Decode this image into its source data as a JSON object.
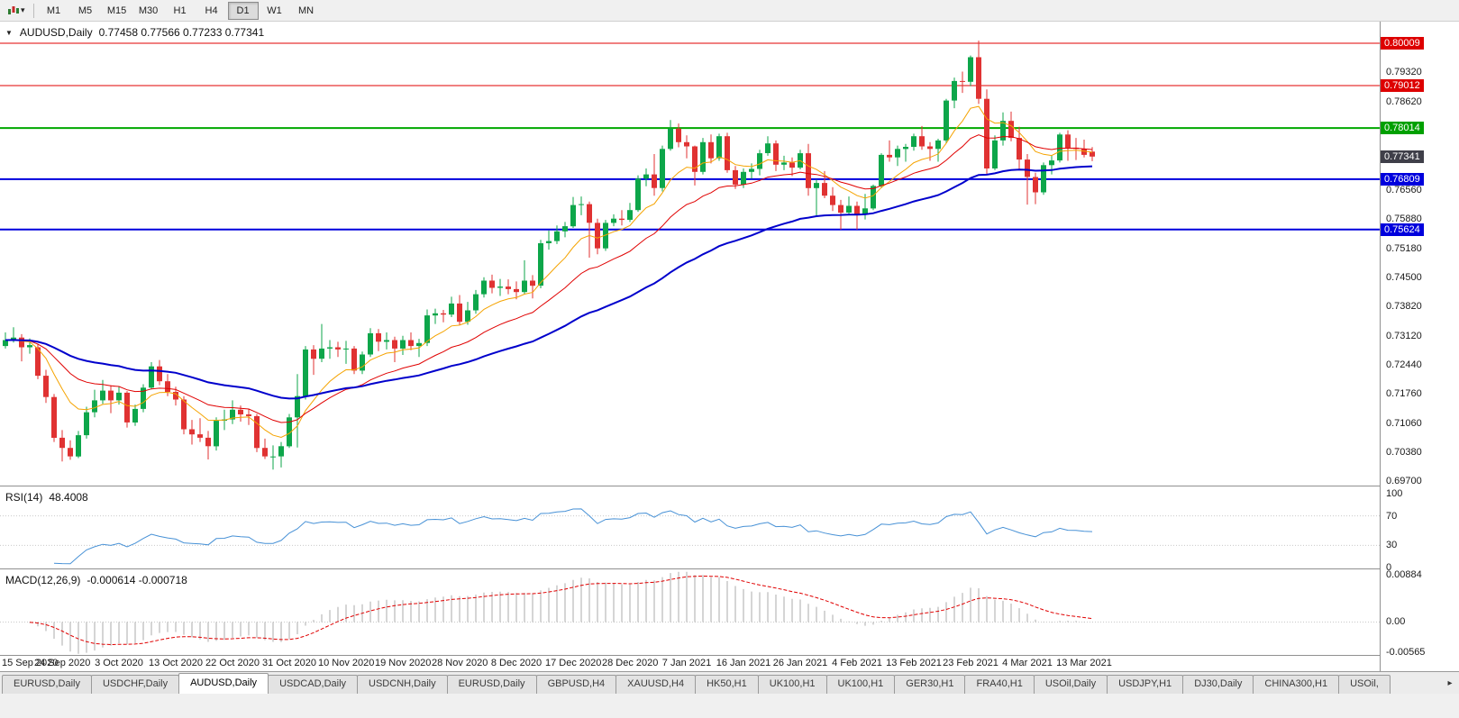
{
  "toolbar": {
    "periods": [
      "M1",
      "M5",
      "M15",
      "M30",
      "H1",
      "H4",
      "D1",
      "W1",
      "MN"
    ],
    "active": "D1"
  },
  "icons": {
    "dropdown_arrow": "▾",
    "collapse_arrow": "▼",
    "tab_scroll_right": "▸"
  },
  "chart": {
    "symbol_title": "AUDUSD,Daily",
    "ohlc_text": "0.77458 0.77566 0.77233 0.77341",
    "price_axis": {
      "ticks": [
        "0.79320",
        "0.78620",
        "0.76560",
        "0.75880",
        "0.75180",
        "0.74500",
        "0.73820",
        "0.73120",
        "0.72440",
        "0.71760",
        "0.71060",
        "0.70380",
        "0.69700"
      ],
      "tags": [
        {
          "text": "0.80009",
          "bg": "#dd0000"
        },
        {
          "text": "0.79012",
          "bg": "#dd0000"
        },
        {
          "text": "0.78014",
          "bg": "#00a000"
        },
        {
          "text": "0.77341",
          "bg": "#3f3f49"
        },
        {
          "text": "0.76809",
          "bg": "#0000dd"
        },
        {
          "text": "0.75624",
          "bg": "#0000dd"
        }
      ]
    }
  },
  "rsi": {
    "label": "RSI(14)",
    "value": "48.4008",
    "period": 14,
    "line_color": "#4791d6",
    "levels": [
      {
        "text": "100",
        "v": 100,
        "line": false
      },
      {
        "text": "70",
        "v": 70,
        "line": true
      },
      {
        "text": "30",
        "v": 30,
        "line": true
      },
      {
        "text": "0",
        "v": 0,
        "line": false
      }
    ]
  },
  "macd": {
    "label": "MACD(12,26,9)",
    "values": "-0.000614 -0.000718",
    "fast": 12,
    "slow": 26,
    "signal": 9,
    "axis": [
      {
        "text": "0.00884",
        "v": 0.00884
      },
      {
        "text": "0.00",
        "v": 0
      },
      {
        "text": "-0.00565",
        "v": -0.00565
      }
    ]
  },
  "tabs": {
    "active_index": 2,
    "items": [
      "EURUSD,Daily",
      "USDCHF,Daily",
      "AUDUSD,Daily",
      "USDCAD,Daily",
      "USDCNH,Daily",
      "EURUSD,Daily",
      "GBPUSD,H4",
      "XAUUSD,H4",
      "HK50,H1",
      "UK100,H1",
      "UK100,H1",
      "GER30,H1",
      "FRA40,H1",
      "USOil,Daily",
      "USDJPY,H1",
      "DJ30,Daily",
      "CHINA300,H1",
      "USOil,"
    ]
  },
  "chart_data": {
    "type": "candlestick",
    "title": "AUDUSD,Daily",
    "symbol": "AUDUSD",
    "timeframe": "Daily",
    "current_ohlc": {
      "open": 0.77458,
      "high": 0.77566,
      "low": 0.77233,
      "close": 0.77341
    },
    "y_range": [
      0.697,
      0.80009
    ],
    "colors": {
      "bull": "#0da64a",
      "bear": "#e03232"
    },
    "hlines": [
      {
        "price": 0.80009,
        "color": "#e00000",
        "width": 1
      },
      {
        "price": 0.79012,
        "color": "#e00000",
        "width": 1
      },
      {
        "price": 0.78014,
        "color": "#00a800",
        "width": 2
      },
      {
        "price": 0.76809,
        "color": "#0000dd",
        "width": 2
      },
      {
        "price": 0.75624,
        "color": "#0000dd",
        "width": 2
      }
    ],
    "moving_averages": [
      {
        "period": 9,
        "color": "#f5a300",
        "width": 1
      },
      {
        "period": 21,
        "color": "#e00000",
        "width": 1
      },
      {
        "period": 50,
        "color": "#0000cc",
        "width": 2
      }
    ],
    "x_labels": [
      "15 Sep 2020",
      "24 Sep 2020",
      "3 Oct 2020",
      "13 Oct 2020",
      "22 Oct 2020",
      "31 Oct 2020",
      "10 Nov 2020",
      "19 Nov 2020",
      "28 Nov 2020",
      "8 Dec 2020",
      "17 Dec 2020",
      "28 Dec 2020",
      "7 Jan 2021",
      "16 Jan 2021",
      "26 Jan 2021",
      "4 Feb 2021",
      "13 Feb 2021",
      "23 Feb 2021",
      "4 Mar 2021",
      "13 Mar 2021"
    ],
    "ohlc": [
      [
        0.7288,
        0.732,
        0.7282,
        0.7302
      ],
      [
        0.7302,
        0.7332,
        0.7296,
        0.7308
      ],
      [
        0.7308,
        0.7316,
        0.7252,
        0.7285
      ],
      [
        0.7285,
        0.7306,
        0.727,
        0.729
      ],
      [
        0.7285,
        0.7292,
        0.721,
        0.7218
      ],
      [
        0.7218,
        0.7232,
        0.7154,
        0.7168
      ],
      [
        0.7168,
        0.7175,
        0.7062,
        0.7072
      ],
      [
        0.7072,
        0.709,
        0.7016,
        0.7048
      ],
      [
        0.7048,
        0.7066,
        0.702,
        0.7028
      ],
      [
        0.7028,
        0.7088,
        0.7024,
        0.7078
      ],
      [
        0.7078,
        0.7145,
        0.707,
        0.7132
      ],
      [
        0.7132,
        0.7185,
        0.712,
        0.716
      ],
      [
        0.716,
        0.7208,
        0.7152,
        0.7183
      ],
      [
        0.7183,
        0.7196,
        0.713,
        0.716
      ],
      [
        0.716,
        0.7192,
        0.715,
        0.7178
      ],
      [
        0.7178,
        0.7182,
        0.7096,
        0.7108
      ],
      [
        0.7108,
        0.715,
        0.71,
        0.714
      ],
      [
        0.714,
        0.7198,
        0.7132,
        0.719
      ],
      [
        0.719,
        0.725,
        0.7186,
        0.724
      ],
      [
        0.724,
        0.7255,
        0.7196,
        0.7205
      ],
      [
        0.7205,
        0.7222,
        0.717,
        0.718
      ],
      [
        0.718,
        0.7192,
        0.7148,
        0.7162
      ],
      [
        0.7162,
        0.717,
        0.708,
        0.7092
      ],
      [
        0.7092,
        0.7114,
        0.7056,
        0.708
      ],
      [
        0.708,
        0.7118,
        0.7062,
        0.7072
      ],
      [
        0.7072,
        0.7088,
        0.7021,
        0.7052
      ],
      [
        0.7052,
        0.712,
        0.7042,
        0.7112
      ],
      [
        0.7112,
        0.7138,
        0.709,
        0.7115
      ],
      [
        0.7115,
        0.716,
        0.7104,
        0.7138
      ],
      [
        0.7138,
        0.7148,
        0.711,
        0.7127
      ],
      [
        0.7127,
        0.714,
        0.7102,
        0.7123
      ],
      [
        0.7123,
        0.7128,
        0.7038,
        0.7048
      ],
      [
        0.7048,
        0.707,
        0.7022,
        0.7028
      ],
      [
        0.7028,
        0.7054,
        0.6997,
        0.7028
      ],
      [
        0.7028,
        0.7062,
        0.7002,
        0.7052
      ],
      [
        0.7052,
        0.7128,
        0.7048,
        0.712
      ],
      [
        0.712,
        0.7222,
        0.7049,
        0.717
      ],
      [
        0.717,
        0.7288,
        0.7162,
        0.728
      ],
      [
        0.728,
        0.729,
        0.722,
        0.7258
      ],
      [
        0.7258,
        0.734,
        0.725,
        0.7282
      ],
      [
        0.7282,
        0.7302,
        0.7258,
        0.7285
      ],
      [
        0.7285,
        0.7298,
        0.7262,
        0.728
      ],
      [
        0.728,
        0.73,
        0.7246,
        0.7282
      ],
      [
        0.7282,
        0.7288,
        0.7222,
        0.723
      ],
      [
        0.723,
        0.7275,
        0.7222,
        0.7268
      ],
      [
        0.7268,
        0.733,
        0.7262,
        0.7318
      ],
      [
        0.7318,
        0.7328,
        0.7276,
        0.7298
      ],
      [
        0.7298,
        0.732,
        0.728,
        0.7302
      ],
      [
        0.7302,
        0.731,
        0.725,
        0.7282
      ],
      [
        0.7282,
        0.7312,
        0.7267,
        0.7302
      ],
      [
        0.7302,
        0.732,
        0.7278,
        0.7288
      ],
      [
        0.7288,
        0.7305,
        0.7262,
        0.7295
      ],
      [
        0.7295,
        0.7374,
        0.7288,
        0.736
      ],
      [
        0.736,
        0.7376,
        0.734,
        0.7365
      ],
      [
        0.7365,
        0.7373,
        0.7344,
        0.7362
      ],
      [
        0.7362,
        0.7404,
        0.7356,
        0.7388
      ],
      [
        0.7388,
        0.7408,
        0.7338,
        0.7345
      ],
      [
        0.7345,
        0.7392,
        0.7338,
        0.7372
      ],
      [
        0.7372,
        0.742,
        0.7364,
        0.741
      ],
      [
        0.741,
        0.745,
        0.7402,
        0.7442
      ],
      [
        0.7442,
        0.7456,
        0.7412,
        0.7425
      ],
      [
        0.7425,
        0.7446,
        0.7406,
        0.7428
      ],
      [
        0.7428,
        0.7445,
        0.741,
        0.7422
      ],
      [
        0.7422,
        0.744,
        0.7398,
        0.7415
      ],
      [
        0.7415,
        0.749,
        0.741,
        0.7442
      ],
      [
        0.7442,
        0.7455,
        0.74,
        0.743
      ],
      [
        0.743,
        0.7538,
        0.7424,
        0.753
      ],
      [
        0.753,
        0.756,
        0.7515,
        0.7535
      ],
      [
        0.7535,
        0.7572,
        0.7528,
        0.7558
      ],
      [
        0.7558,
        0.758,
        0.7544,
        0.757
      ],
      [
        0.757,
        0.7639,
        0.7566,
        0.762
      ],
      [
        0.762,
        0.764,
        0.7596,
        0.7622
      ],
      [
        0.7622,
        0.7628,
        0.7496,
        0.7578
      ],
      [
        0.7578,
        0.7588,
        0.7504,
        0.7518
      ],
      [
        0.7518,
        0.7585,
        0.7512,
        0.7578
      ],
      [
        0.7578,
        0.7598,
        0.757,
        0.7588
      ],
      [
        0.7588,
        0.7608,
        0.7572,
        0.7585
      ],
      [
        0.7585,
        0.7625,
        0.758,
        0.7608
      ],
      [
        0.7608,
        0.769,
        0.7604,
        0.7682
      ],
      [
        0.7682,
        0.7706,
        0.7664,
        0.7692
      ],
      [
        0.7692,
        0.774,
        0.7642,
        0.766
      ],
      [
        0.766,
        0.776,
        0.7652,
        0.7752
      ],
      [
        0.7752,
        0.782,
        0.7748,
        0.78
      ],
      [
        0.78,
        0.7812,
        0.7756,
        0.7768
      ],
      [
        0.7768,
        0.7784,
        0.773,
        0.7758
      ],
      [
        0.7758,
        0.776,
        0.7666,
        0.7698
      ],
      [
        0.7698,
        0.7778,
        0.7692,
        0.7768
      ],
      [
        0.7768,
        0.7786,
        0.7718,
        0.773
      ],
      [
        0.773,
        0.7788,
        0.7724,
        0.7782
      ],
      [
        0.7782,
        0.779,
        0.7696,
        0.7702
      ],
      [
        0.7702,
        0.7712,
        0.7658,
        0.7668
      ],
      [
        0.7668,
        0.7706,
        0.766,
        0.7698
      ],
      [
        0.7698,
        0.7718,
        0.7682,
        0.7705
      ],
      [
        0.7705,
        0.775,
        0.769,
        0.7742
      ],
      [
        0.7742,
        0.7782,
        0.7736,
        0.7765
      ],
      [
        0.7765,
        0.7772,
        0.77,
        0.7715
      ],
      [
        0.7715,
        0.7736,
        0.7702,
        0.772
      ],
      [
        0.772,
        0.7732,
        0.7688,
        0.7708
      ],
      [
        0.7708,
        0.775,
        0.7704,
        0.7742
      ],
      [
        0.7742,
        0.7764,
        0.7642,
        0.766
      ],
      [
        0.766,
        0.768,
        0.7592,
        0.7672
      ],
      [
        0.7672,
        0.77,
        0.7636,
        0.7642
      ],
      [
        0.7642,
        0.7662,
        0.7606,
        0.762
      ],
      [
        0.762,
        0.7632,
        0.7562,
        0.7602
      ],
      [
        0.7602,
        0.764,
        0.7596,
        0.7618
      ],
      [
        0.7618,
        0.7628,
        0.7562,
        0.7598
      ],
      [
        0.7598,
        0.7646,
        0.7586,
        0.7612
      ],
      [
        0.7612,
        0.7668,
        0.7608,
        0.7665
      ],
      [
        0.7665,
        0.7742,
        0.766,
        0.7738
      ],
      [
        0.7738,
        0.7772,
        0.7722,
        0.7732
      ],
      [
        0.7732,
        0.776,
        0.7712,
        0.7752
      ],
      [
        0.7752,
        0.7764,
        0.7722,
        0.7757
      ],
      [
        0.7757,
        0.7788,
        0.7748,
        0.7782
      ],
      [
        0.7782,
        0.7806,
        0.775,
        0.7758
      ],
      [
        0.7758,
        0.7768,
        0.7724,
        0.7752
      ],
      [
        0.7752,
        0.7776,
        0.7722,
        0.7772
      ],
      [
        0.7772,
        0.787,
        0.7766,
        0.7866
      ],
      [
        0.7866,
        0.792,
        0.7848,
        0.7912
      ],
      [
        0.7912,
        0.7934,
        0.7884,
        0.791
      ],
      [
        0.791,
        0.7972,
        0.79,
        0.7968
      ],
      [
        0.7968,
        0.8007,
        0.7858,
        0.787
      ],
      [
        0.787,
        0.7892,
        0.7692,
        0.7706
      ],
      [
        0.7706,
        0.7784,
        0.7702,
        0.7772
      ],
      [
        0.7772,
        0.7838,
        0.776,
        0.7818
      ],
      [
        0.7818,
        0.784,
        0.777,
        0.7778
      ],
      [
        0.7778,
        0.7804,
        0.7704,
        0.7727
      ],
      [
        0.7727,
        0.774,
        0.7621,
        0.7686
      ],
      [
        0.7686,
        0.7696,
        0.7622,
        0.765
      ],
      [
        0.765,
        0.772,
        0.7644,
        0.7714
      ],
      [
        0.7714,
        0.7736,
        0.7692,
        0.7725
      ],
      [
        0.7725,
        0.779,
        0.772,
        0.7786
      ],
      [
        0.7786,
        0.7796,
        0.7724,
        0.7755
      ],
      [
        0.7755,
        0.7778,
        0.7726,
        0.7752
      ],
      [
        0.7752,
        0.7774,
        0.7732,
        0.7738
      ],
      [
        0.77458,
        0.77566,
        0.77233,
        0.77341
      ]
    ]
  }
}
